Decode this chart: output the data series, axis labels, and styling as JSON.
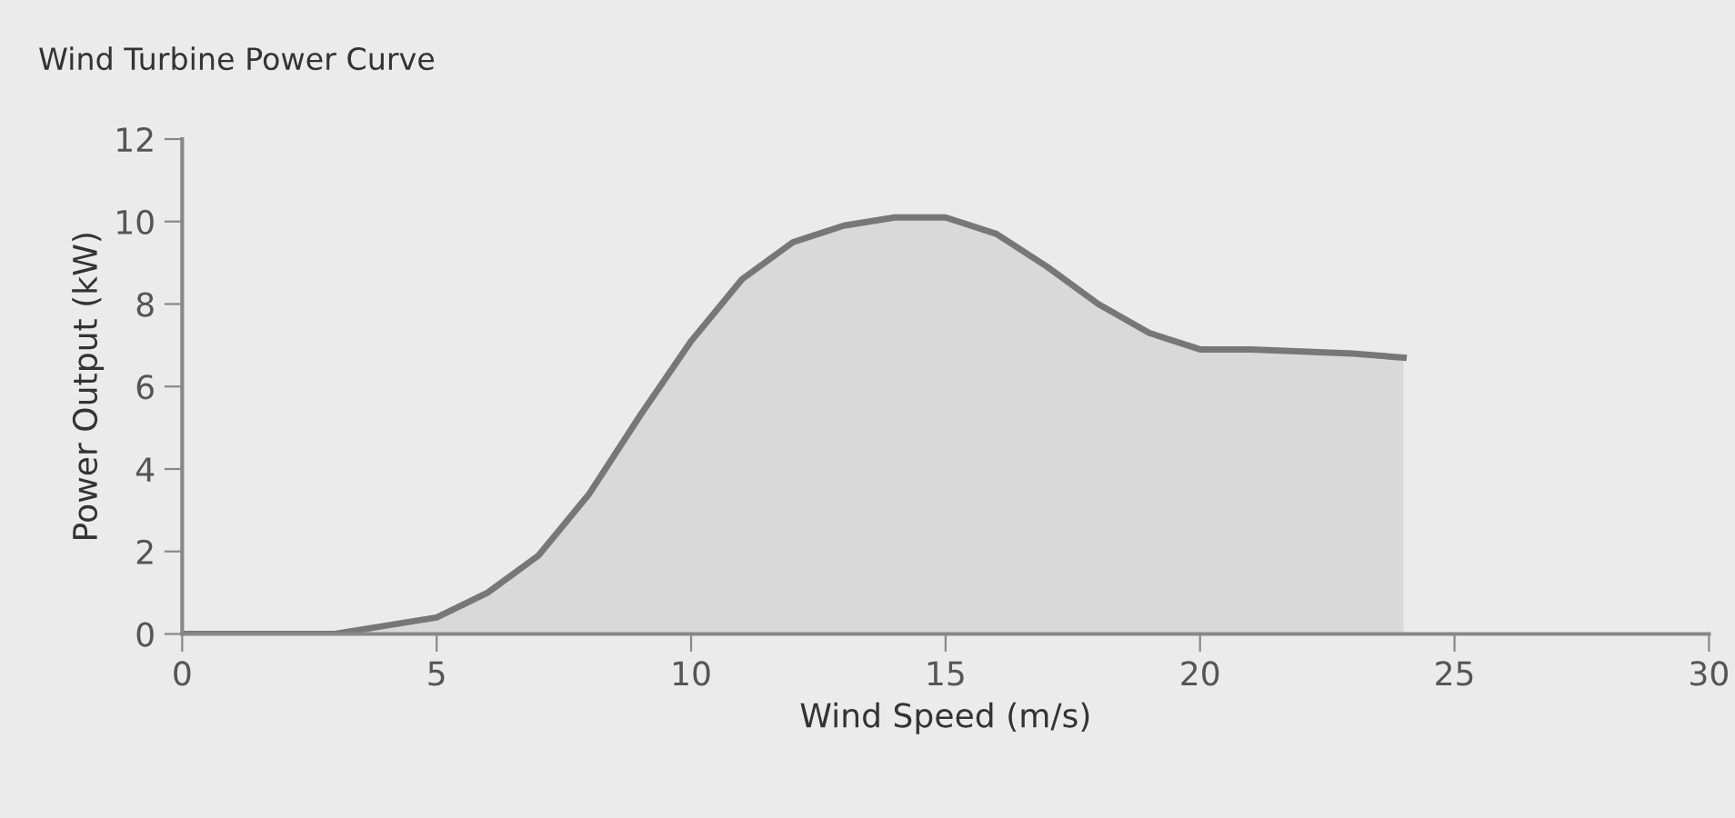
{
  "chart_data": {
    "type": "area",
    "title": "Wind Turbine Power Curve",
    "xlabel": "Wind Speed (m/s)",
    "ylabel": "Power Output (kW)",
    "x": [
      0,
      1,
      2,
      3,
      4,
      5,
      6,
      7,
      8,
      9,
      10,
      11,
      12,
      13,
      14,
      15,
      16,
      17,
      18,
      19,
      20,
      21,
      22,
      23,
      24
    ],
    "series": [
      {
        "color": "#777777",
        "values": [
          0,
          0,
          0,
          0,
          0.2,
          0.4,
          1.0,
          1.9,
          3.4,
          5.3,
          7.1,
          8.6,
          9.5,
          9.9,
          10.1,
          10.1,
          9.7,
          8.9,
          8.0,
          7.3,
          6.9,
          6.9,
          6.85,
          6.8,
          6.7
        ]
      }
    ],
    "xlim": [
      0,
      30
    ],
    "ylim": [
      0,
      12
    ],
    "xticks": [
      0,
      5,
      10,
      15,
      20,
      25,
      30
    ],
    "yticks": [
      0,
      2,
      4,
      6,
      8,
      10,
      12
    ],
    "grid": false,
    "legend": false
  }
}
